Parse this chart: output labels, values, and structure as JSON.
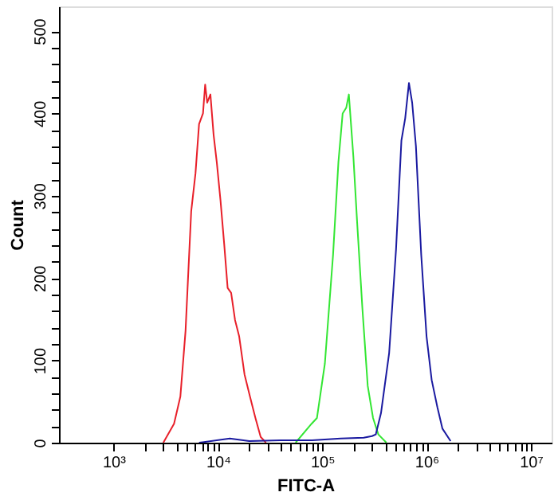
{
  "chart_data": {
    "type": "line",
    "xlabel": "FITC-A",
    "ylabel": "Count",
    "log": "x",
    "grid": false,
    "legend": false,
    "marker": "none",
    "line_style": "solid",
    "xlim": [
      300,
      15800000
    ],
    "ylim": [
      0,
      530
    ],
    "xticks": [
      {
        "value": 1000,
        "label": "10³"
      },
      {
        "value": 2000,
        "label": null
      },
      {
        "value": 3000,
        "label": null
      },
      {
        "value": 4000,
        "label": null
      },
      {
        "value": 5000,
        "label": null
      },
      {
        "value": 6000,
        "label": null
      },
      {
        "value": 7000,
        "label": null
      },
      {
        "value": 8000,
        "label": null
      },
      {
        "value": 9000,
        "label": null
      },
      {
        "value": 10000,
        "label": "10⁴"
      },
      {
        "value": 20000,
        "label": null
      },
      {
        "value": 30000,
        "label": null
      },
      {
        "value": 40000,
        "label": null
      },
      {
        "value": 50000,
        "label": null
      },
      {
        "value": 60000,
        "label": null
      },
      {
        "value": 70000,
        "label": null
      },
      {
        "value": 80000,
        "label": null
      },
      {
        "value": 90000,
        "label": null
      },
      {
        "value": 100000,
        "label": "10⁵"
      },
      {
        "value": 200000,
        "label": null
      },
      {
        "value": 300000,
        "label": null
      },
      {
        "value": 400000,
        "label": null
      },
      {
        "value": 500000,
        "label": null
      },
      {
        "value": 600000,
        "label": null
      },
      {
        "value": 700000,
        "label": null
      },
      {
        "value": 800000,
        "label": null
      },
      {
        "value": 900000,
        "label": null
      },
      {
        "value": 1000000,
        "label": "10⁶"
      },
      {
        "value": 2000000,
        "label": null
      },
      {
        "value": 3000000,
        "label": null
      },
      {
        "value": 4000000,
        "label": null
      },
      {
        "value": 5000000,
        "label": null
      },
      {
        "value": 6000000,
        "label": null
      },
      {
        "value": 7000000,
        "label": null
      },
      {
        "value": 8000000,
        "label": null
      },
      {
        "value": 9000000,
        "label": null
      },
      {
        "value": 10000000,
        "label": "10⁷"
      }
    ],
    "yticks": [
      0,
      {
        "value": 20,
        "label": null
      },
      {
        "value": 40,
        "label": null
      },
      {
        "value": 60,
        "label": null
      },
      {
        "value": 80,
        "label": null
      },
      100,
      {
        "value": 120,
        "label": null
      },
      {
        "value": 140,
        "label": null
      },
      {
        "value": 160,
        "label": null
      },
      {
        "value": 180,
        "label": null
      },
      200,
      {
        "value": 220,
        "label": null
      },
      {
        "value": 240,
        "label": null
      },
      {
        "value": 260,
        "label": null
      },
      {
        "value": 280,
        "label": null
      },
      300,
      {
        "value": 320,
        "label": null
      },
      {
        "value": 340,
        "label": null
      },
      {
        "value": 360,
        "label": null
      },
      {
        "value": 380,
        "label": null
      },
      400,
      {
        "value": 420,
        "label": null
      },
      {
        "value": 440,
        "label": null
      },
      {
        "value": 460,
        "label": null
      },
      {
        "value": 480,
        "label": null
      },
      500
    ],
    "series": [
      {
        "color": "#e8202a",
        "x": [
          3000,
          3800,
          4370,
          4900,
          5550,
          6100,
          6600,
          7200,
          7550,
          7900,
          8480,
          9100,
          9770,
          10600,
          11500,
          12400,
          13400,
          14600,
          16000,
          18000,
          20300,
          22900,
          25700,
          28900
        ],
        "values": [
          0,
          23,
          56,
          136,
          281,
          327,
          387,
          400,
          435,
          413,
          423,
          374,
          340,
          294,
          241,
          188,
          182,
          149,
          129,
          83,
          56,
          30,
          7,
          0
        ]
      },
      {
        "color": "#33e633",
        "x": [
          55600,
          79100,
          89000,
          106000,
          127000,
          143000,
          157000,
          170000,
          180000,
          199000,
          216000,
          243000,
          273000,
          307000,
          345000,
          412000
        ],
        "values": [
          0,
          23,
          30,
          96,
          228,
          341,
          400,
          407,
          423,
          347,
          268,
          162,
          69,
          30,
          10,
          0
        ]
      },
      {
        "color": "#1a1aa0",
        "x": [
          6600,
          13000,
          20000,
          40000,
          80000,
          150000,
          250000,
          300000,
          326000,
          366000,
          438000,
          510000,
          574000,
          624000,
          678000,
          728000,
          791000,
          889000,
          1000000,
          1120000,
          1270000,
          1420000,
          1700000
        ],
        "values": [
          0,
          5,
          2,
          3,
          3,
          5,
          6,
          8,
          10,
          36,
          109,
          235,
          367,
          394,
          437,
          413,
          360,
          228,
          129,
          76,
          43,
          17,
          2
        ]
      }
    ]
  }
}
